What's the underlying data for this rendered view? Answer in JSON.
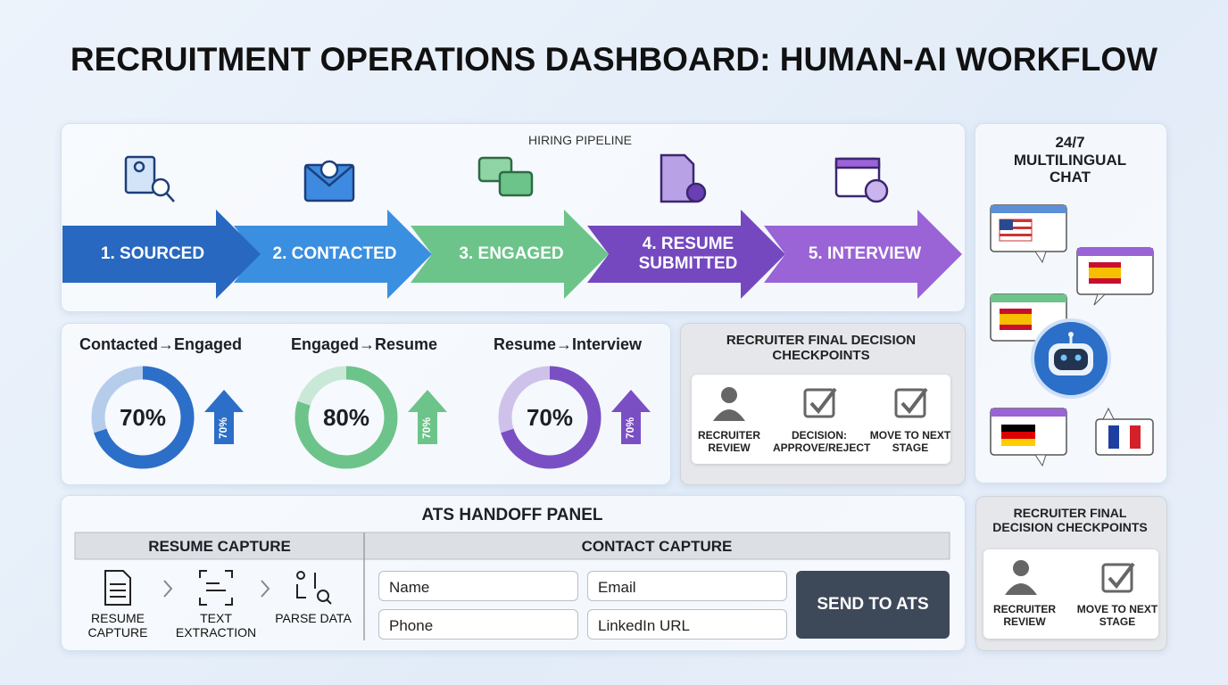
{
  "header": {
    "title": "RECRUITMENT OPERATIONS DASHBOARD: HUMAN-AI WORKFLOW"
  },
  "pipeline": {
    "title": "HIRING PIPELINE",
    "stages": [
      "1. SOURCED",
      "2. CONTACTED",
      "3. ENGAGED",
      "4. RESUME SUBMITTED",
      "5. INTERVIEW"
    ]
  },
  "conversion": [
    {
      "label": "Contacted→Engaged",
      "value": 70,
      "value_label": "70%",
      "trend_label": "70%",
      "color": "#2c6fc8"
    },
    {
      "label": "Engaged→Resume",
      "value": 80,
      "value_label": "80%",
      "trend_label": "70%",
      "color": "#6cc48a"
    },
    {
      "label": "Resume→Interview",
      "value": 70,
      "value_label": "70%",
      "trend_label": "70%",
      "color": "#7b4fc4"
    }
  ],
  "checkpoints": {
    "title": "RECRUITER FINAL DECISION CHECKPOINTS",
    "items": [
      "RECRUITER REVIEW",
      "DECISION: APPROVE/REJECT",
      "MOVE TO NEXT STAGE"
    ]
  },
  "chat": {
    "title": "24/7 MULTILINGUAL CHAT"
  },
  "ats": {
    "title": "ATS HANDOFF PANEL",
    "resume_capture": {
      "header": "RESUME CAPTURE",
      "steps": [
        "RESUME CAPTURE",
        "TEXT EXTRACTION",
        "PARSE DATA"
      ]
    },
    "contact_capture": {
      "header": "CONTACT CAPTURE",
      "fields": [
        "Name",
        "Email",
        "Phone",
        "LinkedIn URL"
      ],
      "button": "SEND TO ATS"
    }
  },
  "checkpoints_compact": {
    "title": "RECRUITER FINAL DECISION CHECKPOINTS",
    "items": [
      "RECRUITER REVIEW",
      "MOVE TO NEXT STAGE"
    ]
  }
}
